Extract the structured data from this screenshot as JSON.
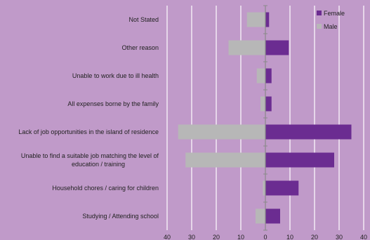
{
  "chart_data": {
    "type": "bar",
    "orientation": "horizontal",
    "categories": [
      "Not Stated",
      "Other reason",
      "Unable to work due to ill health",
      "All expenses borne by the family",
      "Lack of job opportunities in the island of residence",
      "Unable to find a suitable job matching the level of education / training",
      "Household chores / caring for children",
      "Studying / Attending school"
    ],
    "series": [
      {
        "name": "Female",
        "color": "#6b2c91",
        "values": [
          1.5,
          9.5,
          2.5,
          2.5,
          35,
          28,
          13.5,
          6
        ]
      },
      {
        "name": "Male",
        "color": "#b7b7b7",
        "values": [
          -7.5,
          -15,
          -3.5,
          -2,
          -35.5,
          -32.5,
          -1,
          -4
        ]
      }
    ],
    "xlim": [
      -40,
      40
    ],
    "xticks": [
      -40,
      -30,
      -20,
      -10,
      0,
      10,
      20,
      30,
      40
    ],
    "xtick_labels": [
      "40",
      "30",
      "20",
      "10",
      "0",
      "10",
      "20",
      "30",
      "40"
    ],
    "grid": true,
    "legend": "top-right",
    "title": "",
    "xlabel": "",
    "ylabel": ""
  }
}
